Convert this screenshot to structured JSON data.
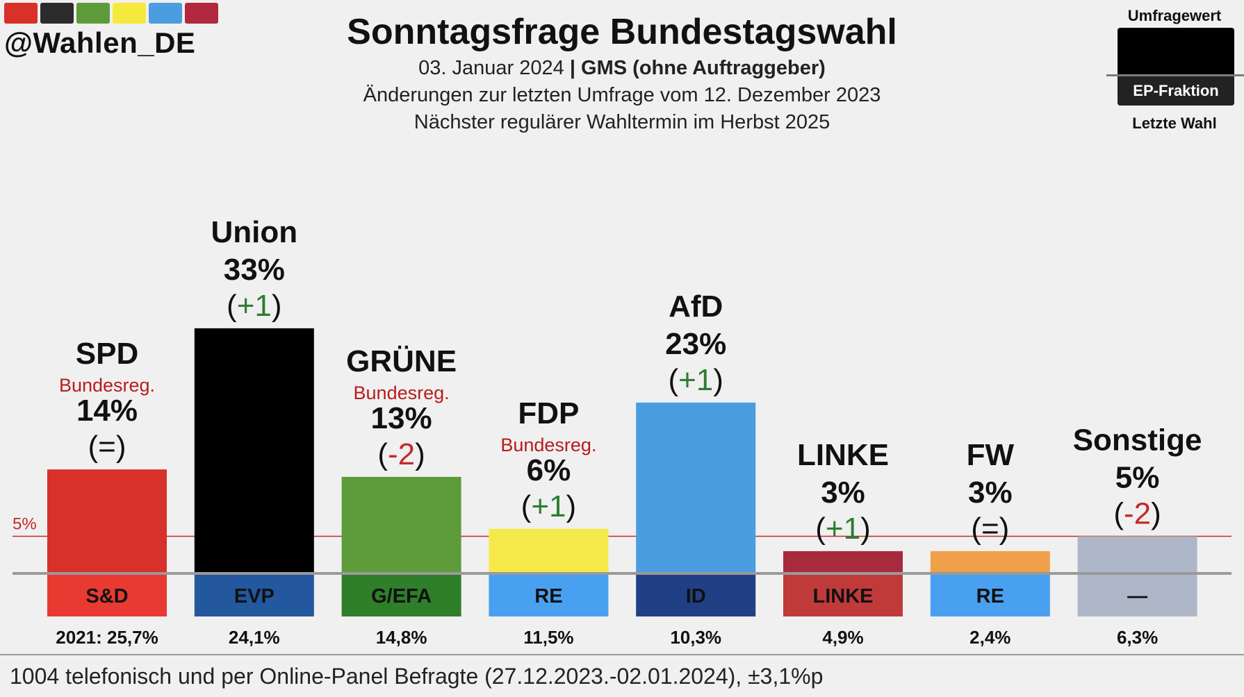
{
  "header": {
    "handle": "@Wahlen_DE",
    "title": "Sonntagsfrage Bundestagswahl",
    "date": "03. Januar 2024",
    "separator": "|",
    "institute": "GMS (ohne Auftraggeber)",
    "changes_line": "Änderungen zur letzten Umfrage vom 12. Dezember 2023",
    "next_election_line": "Nächster regulärer Wahltermin im Herbst 2025",
    "brand_stripe_colors": [
      "#d7312a",
      "#2b2b2b",
      "#5e9b3b",
      "#f6e93e",
      "#4a9ee0",
      "#b2283f"
    ]
  },
  "legend": {
    "top_label": "Umfragewert",
    "middle_label": "EP-Fraktion",
    "bottom_label": "Letzte Wahl"
  },
  "chart_data": {
    "type": "bar",
    "title": "Sonntagsfrage Bundestagswahl",
    "unit": "%",
    "ylim": [
      0,
      35
    ],
    "threshold": {
      "value": 5,
      "label": "5%",
      "color": "#c62828"
    },
    "categories": [
      "SPD",
      "Union",
      "GRÜNE",
      "FDP",
      "AfD",
      "LINKE",
      "FW",
      "Sonstige"
    ],
    "values": [
      14,
      33,
      13,
      6,
      23,
      3,
      3,
      5
    ],
    "series": [
      {
        "name": "Umfragewert",
        "values": [
          14,
          33,
          13,
          6,
          23,
          3,
          3,
          5
        ]
      },
      {
        "name": "Letzte Wahl",
        "values": [
          25.7,
          24.1,
          14.8,
          11.5,
          10.3,
          4.9,
          2.4,
          6.3
        ]
      }
    ],
    "parties": [
      {
        "name": "SPD",
        "percent_label": "14%",
        "value": 14,
        "change": "(=)",
        "change_sign": "",
        "change_text": "=",
        "gov": "Bundesreg.",
        "color": "#d7312a",
        "ep_group": "S&D",
        "ep_color": "#e83a30",
        "ep_text_color": "#111",
        "last_label": "2021: 25,7%",
        "last_value": 25.7
      },
      {
        "name": "Union",
        "percent_label": "33%",
        "value": 33,
        "change": "(+1)",
        "change_sign": "pos",
        "change_text": "+1",
        "gov": "",
        "color": "#000000",
        "ep_group": "EVP",
        "ep_color": "#23579e",
        "ep_text_color": "#111",
        "last_label": "24,1%",
        "last_value": 24.1
      },
      {
        "name": "GRÜNE",
        "percent_label": "13%",
        "value": 13,
        "change": "(-2)",
        "change_sign": "neg",
        "change_text": "-2",
        "gov": "Bundesreg.",
        "color": "#5e9b3b",
        "ep_group": "G/EFA",
        "ep_color": "#2f7e2a",
        "ep_text_color": "#111",
        "last_label": "14,8%",
        "last_value": 14.8
      },
      {
        "name": "FDP",
        "percent_label": "6%",
        "value": 6,
        "change": "(+1)",
        "change_sign": "pos",
        "change_text": "+1",
        "gov": "Bundesreg.",
        "color": "#f6e94a",
        "ep_group": "RE",
        "ep_color": "#4aa0f0",
        "ep_text_color": "#111",
        "last_label": "11,5%",
        "last_value": 11.5
      },
      {
        "name": "AfD",
        "percent_label": "23%",
        "value": 23,
        "change": "(+1)",
        "change_sign": "pos",
        "change_text": "+1",
        "gov": "",
        "color": "#4a9ee0",
        "ep_group": "ID",
        "ep_color": "#213f84",
        "ep_text_color": "#111",
        "last_label": "10,3%",
        "last_value": 10.3
      },
      {
        "name": "LINKE",
        "percent_label": "3%",
        "value": 3,
        "change": "(+1)",
        "change_sign": "pos",
        "change_text": "+1",
        "gov": "",
        "color": "#a82a3e",
        "ep_group": "LINKE",
        "ep_color": "#c13a3a",
        "ep_text_color": "#111",
        "last_label": "4,9%",
        "last_value": 4.9
      },
      {
        "name": "FW",
        "percent_label": "3%",
        "value": 3,
        "change": "(=)",
        "change_sign": "",
        "change_text": "=",
        "gov": "",
        "color": "#f0a04b",
        "ep_group": "RE",
        "ep_color": "#4aa0f0",
        "ep_text_color": "#111",
        "last_label": "2,4%",
        "last_value": 2.4
      },
      {
        "name": "Sonstige",
        "percent_label": "5%",
        "value": 5,
        "change": "(-2)",
        "change_sign": "neg",
        "change_text": "-2",
        "gov": "",
        "color": "#aeb7c8",
        "ep_group": "—",
        "ep_color": "#aeb7c8",
        "ep_text_color": "#111",
        "last_label": "6,3%",
        "last_value": 6.3
      }
    ],
    "colors": {
      "positive": "#2e7d32",
      "negative": "#c62828",
      "neutral": "#111111",
      "gov": "#b71c1c"
    }
  },
  "footer": {
    "text": "1004 telefonisch und per Online-Panel Befragte (27.12.2023.-02.01.2024), ±3,1%p"
  }
}
